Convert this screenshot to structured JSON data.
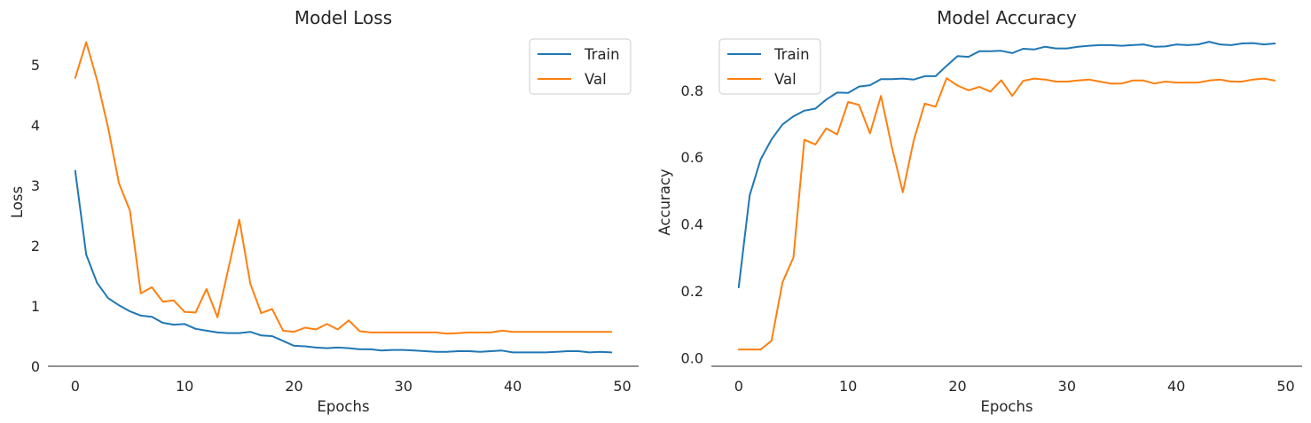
{
  "chart_data": [
    {
      "type": "line",
      "title": "Model Loss",
      "xlabel": "Epochs",
      "ylabel": "Loss",
      "xlim": [
        -2.5,
        51.5
      ],
      "ylim": [
        0,
        5.6
      ],
      "xticks": [
        0,
        10,
        20,
        30,
        40,
        50
      ],
      "yticks": [
        0,
        1,
        2,
        3,
        4,
        5
      ],
      "grid": false,
      "legend": "top-right",
      "series": [
        {
          "name": "Train",
          "color": "#1f77b4",
          "values": [
            3.24,
            1.85,
            1.38,
            1.13,
            1.01,
            0.91,
            0.84,
            0.82,
            0.72,
            0.69,
            0.7,
            0.62,
            0.59,
            0.56,
            0.55,
            0.55,
            0.57,
            0.51,
            0.5,
            0.42,
            0.34,
            0.33,
            0.31,
            0.3,
            0.31,
            0.3,
            0.28,
            0.28,
            0.26,
            0.27,
            0.27,
            0.26,
            0.25,
            0.24,
            0.24,
            0.25,
            0.25,
            0.24,
            0.25,
            0.26,
            0.23,
            0.23,
            0.23,
            0.23,
            0.24,
            0.25,
            0.25,
            0.23,
            0.24,
            0.23
          ]
        },
        {
          "name": "Val",
          "color": "#ff7f0e",
          "values": [
            4.78,
            5.37,
            4.74,
            3.96,
            3.03,
            2.58,
            1.21,
            1.31,
            1.07,
            1.09,
            0.9,
            0.89,
            1.28,
            0.81,
            1.62,
            2.43,
            1.37,
            0.88,
            0.95,
            0.59,
            0.57,
            0.64,
            0.61,
            0.7,
            0.61,
            0.76,
            0.58,
            0.56,
            0.56,
            0.56,
            0.56,
            0.56,
            0.56,
            0.56,
            0.54,
            0.55,
            0.56,
            0.56,
            0.56,
            0.59,
            0.57,
            0.57,
            0.57,
            0.57,
            0.57,
            0.57,
            0.57,
            0.57,
            0.57,
            0.57
          ]
        }
      ]
    },
    {
      "type": "line",
      "title": "Model Accuracy",
      "xlabel": "Epochs",
      "ylabel": "Accuracy",
      "xlim": [
        -2.5,
        51.5
      ],
      "ylim": [
        -0.025,
        0.985
      ],
      "xticks": [
        0,
        10,
        20,
        30,
        40,
        50
      ],
      "yticks": [
        0.0,
        0.2,
        0.4,
        0.6,
        0.8
      ],
      "grid": false,
      "legend": "top-left",
      "series": [
        {
          "name": "Train",
          "color": "#1f77b4",
          "values": [
            0.211,
            0.486,
            0.593,
            0.653,
            0.698,
            0.722,
            0.739,
            0.745,
            0.772,
            0.793,
            0.792,
            0.811,
            0.815,
            0.833,
            0.833,
            0.835,
            0.832,
            0.842,
            0.842,
            0.873,
            0.902,
            0.9,
            0.917,
            0.917,
            0.918,
            0.911,
            0.924,
            0.922,
            0.93,
            0.925,
            0.925,
            0.93,
            0.933,
            0.935,
            0.935,
            0.933,
            0.935,
            0.937,
            0.93,
            0.931,
            0.937,
            0.935,
            0.937,
            0.945,
            0.937,
            0.935,
            0.94,
            0.941,
            0.937,
            0.94
          ]
        },
        {
          "name": "Val",
          "color": "#ff7f0e",
          "values": [
            0.025,
            0.025,
            0.025,
            0.051,
            0.226,
            0.3,
            0.652,
            0.638,
            0.686,
            0.668,
            0.765,
            0.756,
            0.671,
            0.783,
            0.63,
            0.495,
            0.651,
            0.76,
            0.751,
            0.836,
            0.814,
            0.8,
            0.81,
            0.796,
            0.83,
            0.783,
            0.828,
            0.835,
            0.832,
            0.826,
            0.826,
            0.829,
            0.832,
            0.826,
            0.82,
            0.82,
            0.829,
            0.829,
            0.82,
            0.826,
            0.823,
            0.823,
            0.823,
            0.829,
            0.832,
            0.826,
            0.826,
            0.832,
            0.835,
            0.829
          ]
        }
      ]
    }
  ]
}
